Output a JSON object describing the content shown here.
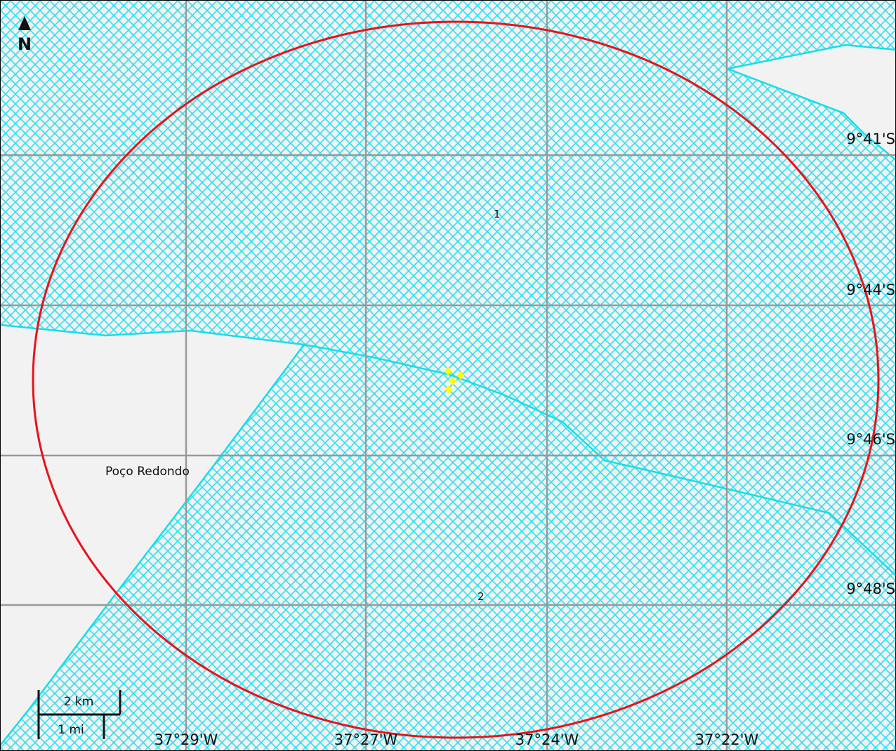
{
  "map": {
    "north_label": "N",
    "colors": {
      "background": "#f2f2f2",
      "hatch": "#2fe0f0",
      "river": "#18dde8",
      "grid": "#999999",
      "circle": "#e8131b",
      "marker": "#ffff00"
    },
    "grid": {
      "latitudes": [
        "9°41'S",
        "9°44'S",
        "9°46'S",
        "9°48'S"
      ],
      "longitudes": [
        "37°29'W",
        "37°27'W",
        "37°24'W",
        "37°22'W"
      ]
    },
    "places": [
      {
        "name": "Poço Redondo"
      }
    ],
    "zone_labels": [
      "1",
      "2"
    ],
    "scale_bar": {
      "metric_label": "2 km",
      "imperial_label": "1 mi"
    }
  }
}
